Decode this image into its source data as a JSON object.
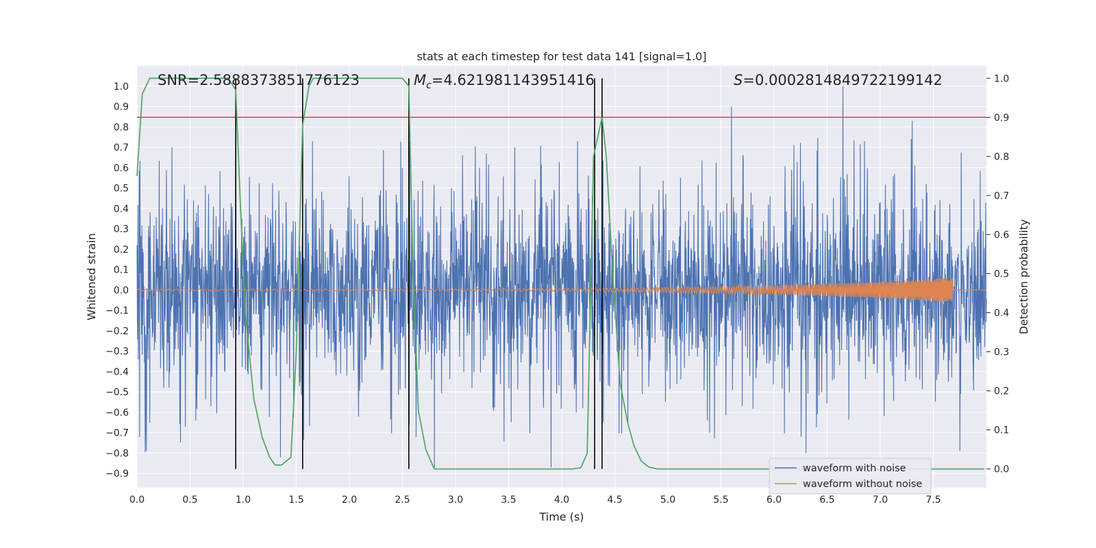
{
  "chart_data": {
    "type": "line",
    "title": "stats at each timestep for test data 141 [signal=1.0]",
    "xlabel": "Time (s)",
    "ylabel_left": "Whitened strain",
    "ylabel_right": "Detection probability",
    "xlim": [
      0,
      8.0
    ],
    "ylim_left": [
      -0.97,
      1.1
    ],
    "ylim_right": [
      -0.048,
      1.032
    ],
    "xticks": [
      "0.0",
      "0.5",
      "1.0",
      "1.5",
      "2.0",
      "2.5",
      "3.0",
      "3.5",
      "4.0",
      "4.5",
      "5.0",
      "5.5",
      "6.0",
      "6.5",
      "7.0",
      "7.5"
    ],
    "yticks_left": [
      "1.0",
      "0.9",
      "0.8",
      "0.7",
      "0.6",
      "0.5",
      "0.4",
      "0.3",
      "0.2",
      "0.1",
      "0.0",
      "−0.1",
      "−0.2",
      "−0.3",
      "−0.4",
      "−0.5",
      "−0.6",
      "−0.7",
      "−0.8",
      "−0.9"
    ],
    "yticks_right": [
      "1.0",
      "0.9",
      "0.8",
      "0.7",
      "0.6",
      "0.5",
      "0.4",
      "0.3",
      "0.2",
      "0.1",
      "0.0"
    ],
    "grid": true,
    "legend_position": "bottom-right",
    "annotations": {
      "snr": "SNR=2.5888373851776123",
      "mc_symbol": "M",
      "mc_sub": "c",
      "mc_value": "=4.621981143951416",
      "s_symbol": "S",
      "s_value": "=0.0002814849722199142"
    },
    "threshold": {
      "value": 0.9,
      "axis": "right",
      "color": "#c44e52"
    },
    "vertical_lines": [
      0.93,
      1.56,
      2.56,
      4.31,
      4.38
    ],
    "vertical_line_color": "#000000",
    "series": [
      {
        "name": "waveform with noise",
        "color": "#4c72b0",
        "axis": "left",
        "duration": 8.0,
        "typical_amplitude": 0.25,
        "peak_amplitude": 1.0,
        "noted_peaks": [
          {
            "x": 0.09,
            "y": -0.79
          },
          {
            "x": 0.33,
            "y": 0.7
          },
          {
            "x": 0.93,
            "y": 0.85
          },
          {
            "x": 1.35,
            "y": -0.82
          },
          {
            "x": 2.8,
            "y": -0.87
          },
          {
            "x": 3.9,
            "y": -0.87
          },
          {
            "x": 5.6,
            "y": 0.9
          },
          {
            "x": 6.3,
            "y": -0.8
          },
          {
            "x": 6.65,
            "y": 1.0
          },
          {
            "x": 7.3,
            "y": 0.83
          },
          {
            "x": 7.75,
            "y": -0.79
          }
        ]
      },
      {
        "name": "waveform without noise",
        "color": "#dd8452",
        "axis": "left",
        "chirp_end": 7.68,
        "amplitude_start": 0.004,
        "amplitude_end": 0.06
      },
      {
        "name": "",
        "color": "#55a868",
        "axis": "right",
        "x": [
          0.0,
          0.05,
          0.12,
          0.2,
          0.35,
          0.5,
          0.7,
          0.86,
          0.93,
          0.97,
          1.02,
          1.1,
          1.18,
          1.25,
          1.3,
          1.36,
          1.45,
          1.5,
          1.56,
          1.62,
          1.66,
          1.75,
          1.9,
          2.1,
          2.3,
          2.5,
          2.56,
          2.6,
          2.65,
          2.72,
          2.8,
          3.0,
          3.4,
          3.8,
          4.1,
          4.18,
          4.24,
          4.3,
          4.38,
          4.42,
          4.48,
          4.55,
          4.62,
          4.68,
          4.75,
          4.82,
          4.9,
          5.2,
          6.0,
          7.0,
          7.98
        ],
        "y": [
          0.75,
          0.96,
          1.0,
          1.0,
          1.0,
          1.0,
          1.0,
          1.0,
          0.97,
          0.7,
          0.4,
          0.18,
          0.08,
          0.03,
          0.01,
          0.01,
          0.03,
          0.3,
          0.88,
          0.98,
          1.0,
          1.0,
          1.0,
          1.0,
          1.0,
          1.0,
          0.98,
          0.5,
          0.15,
          0.05,
          0.0,
          0.0,
          0.0,
          0.0,
          0.0,
          0.003,
          0.04,
          0.8,
          0.9,
          0.8,
          0.5,
          0.22,
          0.12,
          0.06,
          0.02,
          0.005,
          0.0,
          0.0,
          0.0,
          0.0,
          0.0
        ]
      }
    ]
  }
}
